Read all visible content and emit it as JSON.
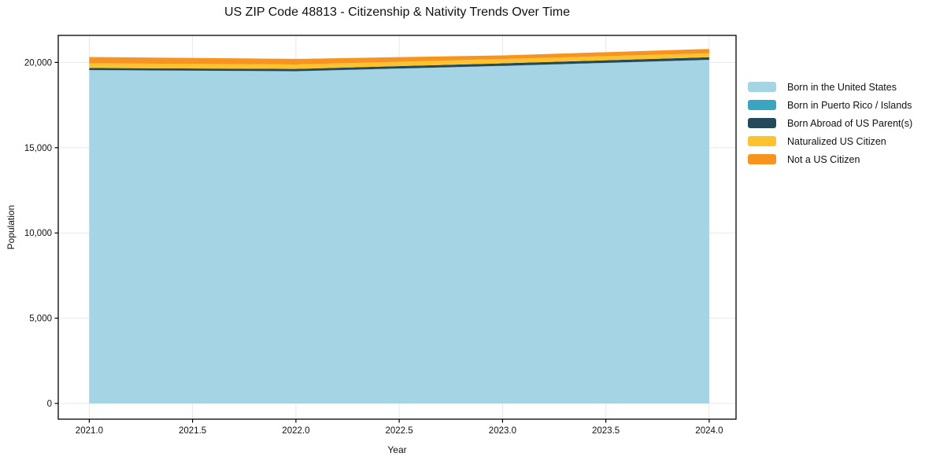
{
  "chart_data": {
    "type": "area",
    "stacked": true,
    "title": "US ZIP Code 48813 - Citizenship & Nativity Trends Over Time",
    "xlabel": "Year",
    "ylabel": "Population",
    "x": [
      2021,
      2022,
      2023,
      2024
    ],
    "series": [
      {
        "name": "Born in the United States",
        "color": "#A5D5E4",
        "values": [
          19545,
          19480,
          19790,
          20145
        ]
      },
      {
        "name": "Born in Puerto Rico / Islands",
        "color": "#3AA5C1",
        "values": [
          10,
          10,
          10,
          10
        ]
      },
      {
        "name": "Born Abroad of US Parent(s)",
        "color": "#23495B",
        "values": [
          120,
          130,
          150,
          150
        ]
      },
      {
        "name": "Naturalized US Citizen",
        "color": "#FCC32F",
        "values": [
          275,
          260,
          250,
          230
        ]
      },
      {
        "name": "Not a US Citizen",
        "color": "#F7941F",
        "values": [
          370,
          330,
          210,
          260
        ]
      }
    ],
    "x_ticks": {
      "values": [
        2021.0,
        2021.5,
        2022.0,
        2022.5,
        2023.0,
        2023.5,
        2024.0
      ],
      "labels": [
        "2021.0",
        "2021.5",
        "2022.0",
        "2022.5",
        "2023.0",
        "2023.5",
        "2024.0"
      ]
    },
    "y_ticks": {
      "values": [
        0,
        5000,
        10000,
        15000,
        20000
      ],
      "labels": [
        "0",
        "5,000",
        "10,000",
        "15,000",
        "20,000"
      ]
    },
    "xlim": [
      2020.85,
      2024.13
    ],
    "ylim": [
      -922,
      21587
    ],
    "grid": true,
    "grid_color": "#e8e8e8",
    "axis_color": "#000000",
    "legend_position": "right"
  }
}
